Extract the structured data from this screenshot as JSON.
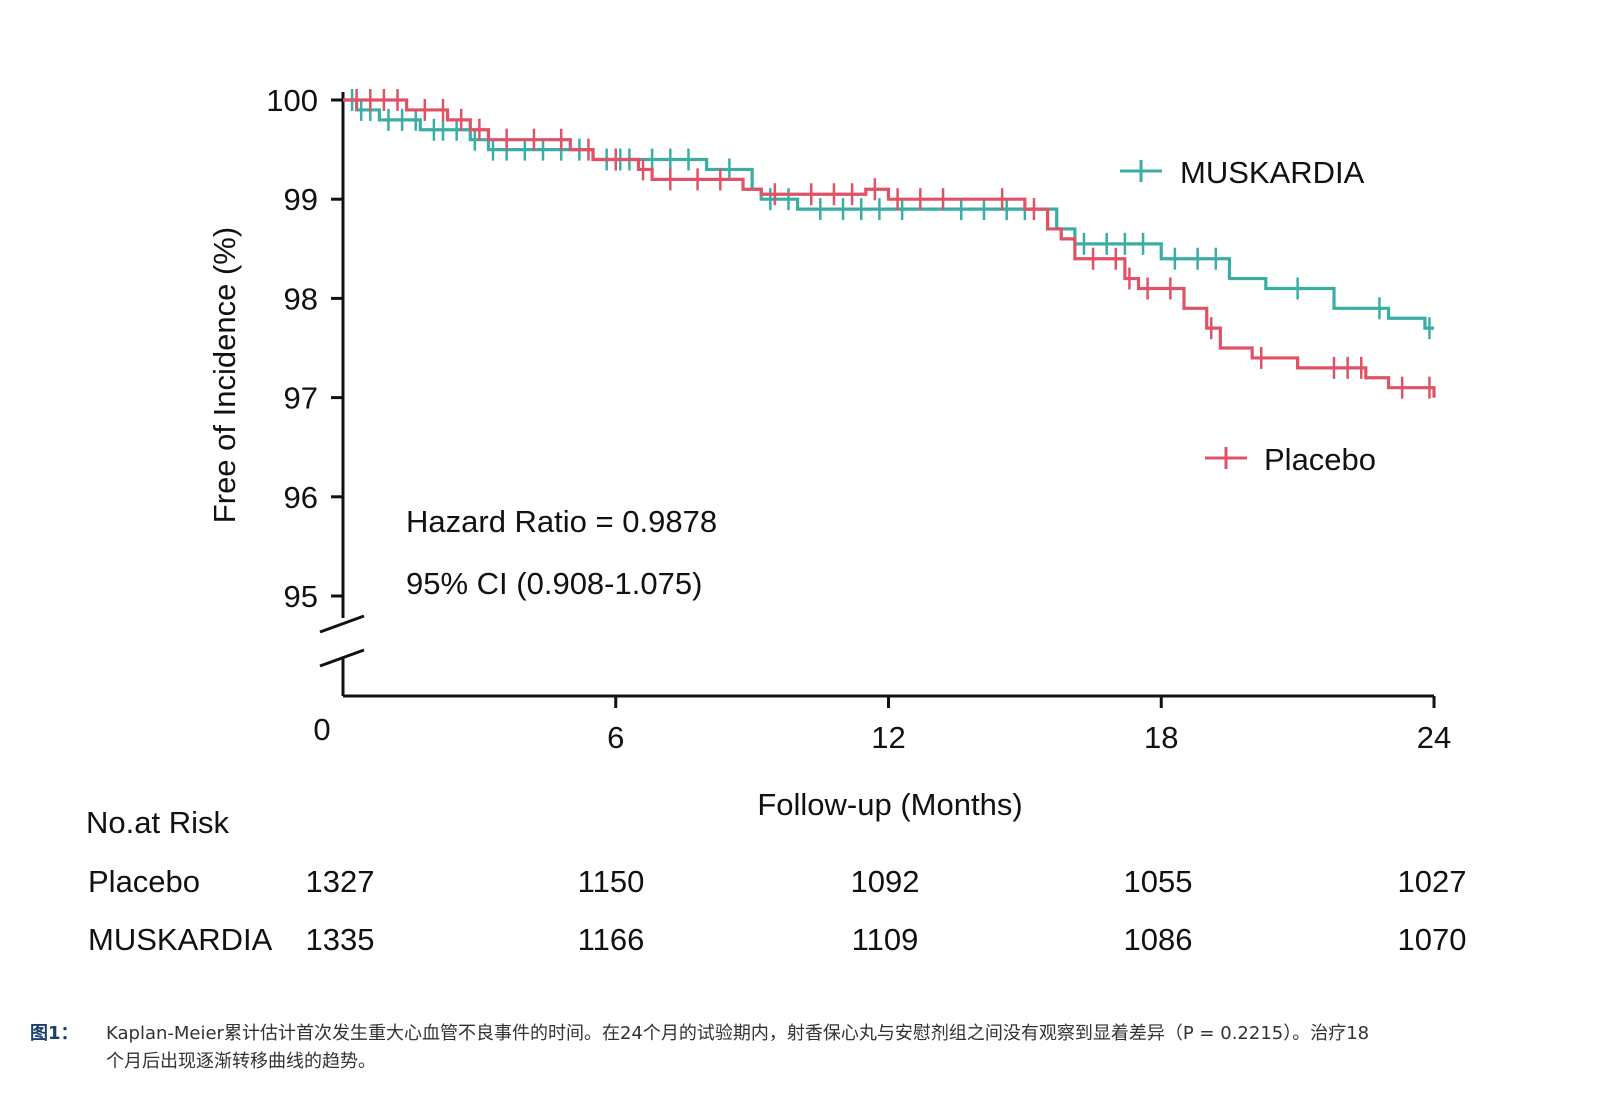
{
  "chart_data": {
    "type": "line",
    "chart_kind": "Kaplan-Meier survival curve",
    "title": "",
    "xlabel": "Follow-up (Months)",
    "ylabel": "Free of Incidence (%)",
    "xlim": [
      0,
      24
    ],
    "ylim": [
      95,
      100
    ],
    "axis_break": "y-axis broken between 0 and 95",
    "x_ticks": [
      "0",
      "6",
      "12",
      "18",
      "24"
    ],
    "y_ticks": [
      "95",
      "96",
      "97",
      "98",
      "99",
      "100"
    ],
    "colors": {
      "MUSKARDIA": "#3aaea5",
      "Placebo": "#e05266"
    },
    "series": [
      {
        "name": "MUSKARDIA",
        "steps": [
          [
            0,
            100.0
          ],
          [
            0.3,
            99.9
          ],
          [
            0.8,
            99.8
          ],
          [
            1.7,
            99.7
          ],
          [
            2.8,
            99.6
          ],
          [
            3.2,
            99.5
          ],
          [
            5.5,
            99.4
          ],
          [
            8.0,
            99.3
          ],
          [
            9.0,
            99.1
          ],
          [
            9.2,
            99.0
          ],
          [
            10.0,
            98.9
          ],
          [
            13.5,
            98.9
          ],
          [
            15.7,
            98.7
          ],
          [
            16.1,
            98.55
          ],
          [
            18.0,
            98.4
          ],
          [
            19.5,
            98.2
          ],
          [
            20.3,
            98.1
          ],
          [
            21.8,
            97.9
          ],
          [
            23.0,
            97.8
          ],
          [
            23.8,
            97.7
          ],
          [
            24.0,
            97.7
          ]
        ],
        "censor_times": [
          0.2,
          0.4,
          0.6,
          1.0,
          1.3,
          1.6,
          2.0,
          2.2,
          2.5,
          2.9,
          3.3,
          3.6,
          4.0,
          4.4,
          4.8,
          5.2,
          5.8,
          6.1,
          6.3,
          6.8,
          7.2,
          7.6,
          8.5,
          9.4,
          9.8,
          10.5,
          11.0,
          11.4,
          11.8,
          12.3,
          13.6,
          14.1,
          14.6,
          15.0,
          16.3,
          16.8,
          17.2,
          17.6,
          18.3,
          18.8,
          19.2,
          21.0,
          22.8,
          23.9
        ]
      },
      {
        "name": "Placebo",
        "steps": [
          [
            0,
            100.0
          ],
          [
            1.4,
            99.9
          ],
          [
            2.3,
            99.8
          ],
          [
            2.8,
            99.7
          ],
          [
            3.2,
            99.6
          ],
          [
            5.0,
            99.5
          ],
          [
            5.5,
            99.4
          ],
          [
            6.5,
            99.3
          ],
          [
            6.8,
            99.2
          ],
          [
            8.8,
            99.1
          ],
          [
            9.2,
            99.05
          ],
          [
            11.5,
            99.1
          ],
          [
            12.0,
            99.0
          ],
          [
            15.0,
            98.9
          ],
          [
            15.5,
            98.7
          ],
          [
            15.8,
            98.6
          ],
          [
            16.1,
            98.4
          ],
          [
            17.2,
            98.2
          ],
          [
            17.5,
            98.1
          ],
          [
            18.5,
            97.9
          ],
          [
            19.0,
            97.7
          ],
          [
            19.3,
            97.5
          ],
          [
            20.0,
            97.4
          ],
          [
            21.0,
            97.3
          ],
          [
            22.5,
            97.2
          ],
          [
            23.0,
            97.1
          ],
          [
            24.0,
            97.0
          ]
        ],
        "censor_times": [
          0.3,
          0.6,
          0.9,
          1.2,
          1.8,
          2.2,
          2.6,
          3.0,
          3.6,
          4.2,
          4.8,
          5.4,
          6.0,
          6.6,
          7.2,
          7.8,
          8.3,
          9.5,
          10.3,
          10.8,
          11.2,
          11.7,
          12.2,
          12.7,
          13.2,
          14.5,
          15.2,
          16.5,
          17.0,
          17.3,
          17.7,
          18.2,
          19.1,
          20.2,
          21.8,
          22.1,
          22.4,
          23.3,
          23.9
        ]
      }
    ],
    "legend": [
      {
        "name": "MUSKARDIA",
        "position": "upper-right"
      },
      {
        "name": "Placebo",
        "position": "right"
      }
    ],
    "annotations": [
      "Hazard Ratio = 0.9878",
      "95% CI (0.908-1.075)"
    ],
    "risk_table": {
      "title": "No.at Risk",
      "rows": [
        {
          "label": "Placebo",
          "values": [
            "1327",
            "1150",
            "1092",
            "1055",
            "1027"
          ]
        },
        {
          "label": "MUSKARDIA",
          "values": [
            "1335",
            "1166",
            "1109",
            "1086",
            "1070"
          ]
        }
      ]
    }
  },
  "caption": {
    "label": "图1：",
    "text": "Kaplan-Meier累计估计首次发生重大心血管不良事件的时间。在24个月的试验期内，射香保心丸与安慰剂组之间没有观察到显着差异（P = 0.2215）。治疗18个月后出现逐渐转移曲线的趋势。"
  }
}
